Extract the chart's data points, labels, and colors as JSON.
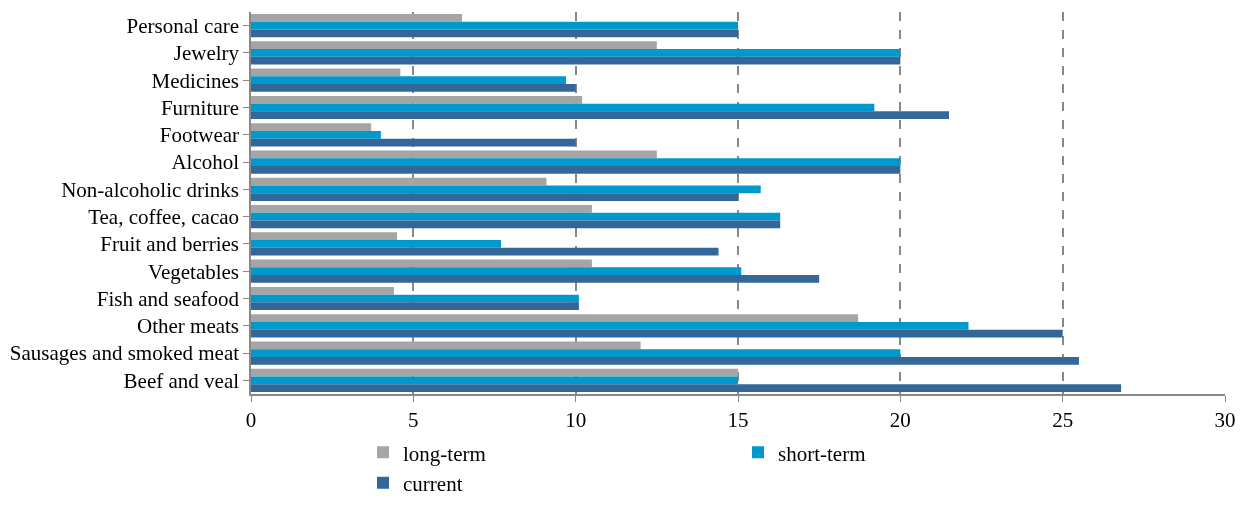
{
  "chart_data": {
    "type": "bar",
    "orientation": "horizontal",
    "categories": [
      "Personal care",
      "Jewelry",
      "Medicines",
      "Furniture",
      "Footwear",
      "Alcohol",
      "Non-alcoholic drinks",
      "Tea, coffee, cacao",
      "Fruit and berries",
      "Vegetables",
      "Fish and seafood",
      "Other meats",
      "Sausages and smoked meat",
      "Beef and veal"
    ],
    "series": [
      {
        "name": "long-term",
        "color": "#a5a5a5",
        "values": [
          6.5,
          12.5,
          4.6,
          10.2,
          3.7,
          12.5,
          9.1,
          10.5,
          4.5,
          10.5,
          4.4,
          18.7,
          12.0,
          15
        ]
      },
      {
        "name": "short-term",
        "color": "#0099cc",
        "values": [
          15,
          20,
          9.7,
          19.2,
          4.0,
          20,
          15.7,
          16.3,
          7.7,
          15.1,
          10.1,
          22.1,
          20,
          15
        ]
      },
      {
        "name": "current",
        "color": "#336699",
        "values": [
          15,
          20,
          10,
          21.5,
          10,
          20,
          15,
          16.3,
          14.4,
          17.5,
          10.1,
          25.0,
          25.5,
          26.8
        ]
      }
    ],
    "xlim": [
      0,
      30
    ],
    "xticks": [
      0,
      5,
      10,
      15,
      20,
      25,
      30
    ],
    "grid": "x",
    "legend": "bottom"
  }
}
